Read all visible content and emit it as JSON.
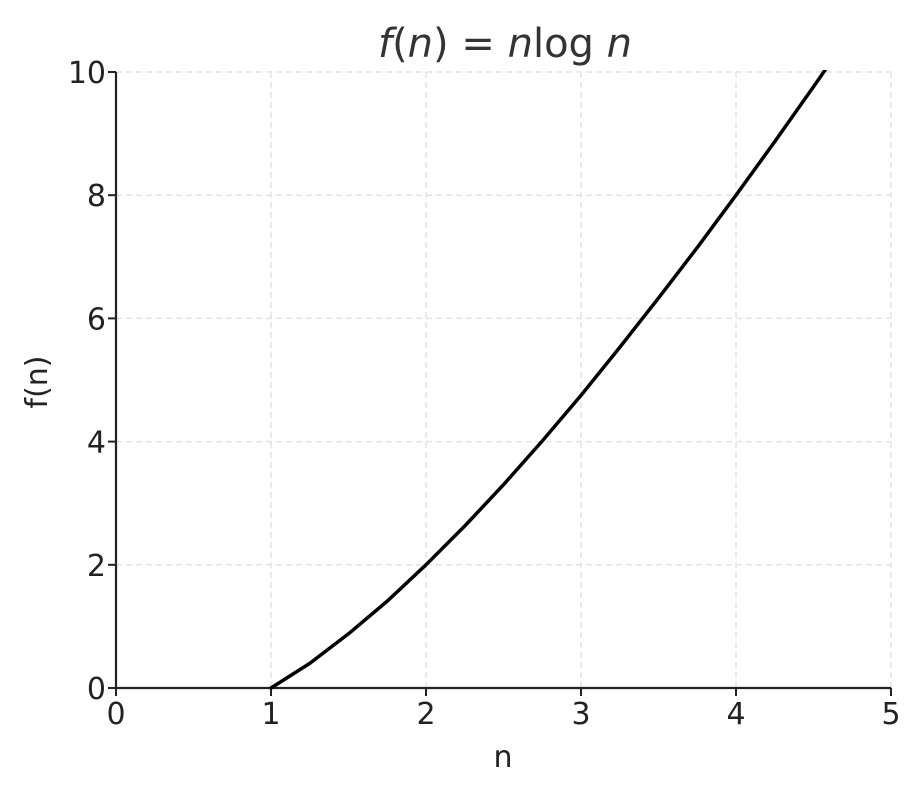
{
  "chart_data": {
    "type": "line",
    "title": {
      "f": "f",
      "open": "(",
      "n1": "n",
      "close": ")",
      "eq": " = ",
      "n2": "n",
      "log": "log",
      "n3": "n"
    },
    "xlabel": "n",
    "ylabel": "f(n)",
    "xlim": [
      0,
      5
    ],
    "ylim": [
      0,
      10
    ],
    "xticks": [
      "0",
      "1",
      "2",
      "3",
      "4",
      "5"
    ],
    "yticks": [
      "0",
      "2",
      "4",
      "6",
      "8",
      "10"
    ],
    "grid": true,
    "log_base": 2,
    "series": [
      {
        "function": "n * log2(n)",
        "x": [
          1.0,
          1.25,
          1.5,
          1.75,
          2.0,
          2.25,
          2.5,
          2.75,
          3.0,
          3.25,
          3.5,
          3.75,
          4.0,
          4.25,
          4.5,
          4.75,
          5.0
        ],
        "y": [
          0.0,
          0.4,
          0.88,
          1.41,
          2.0,
          2.63,
          3.3,
          4.01,
          4.75,
          5.53,
          6.33,
          7.15,
          8.0,
          8.87,
          9.76,
          10.67,
          11.61
        ],
        "color": "#000000"
      }
    ]
  }
}
